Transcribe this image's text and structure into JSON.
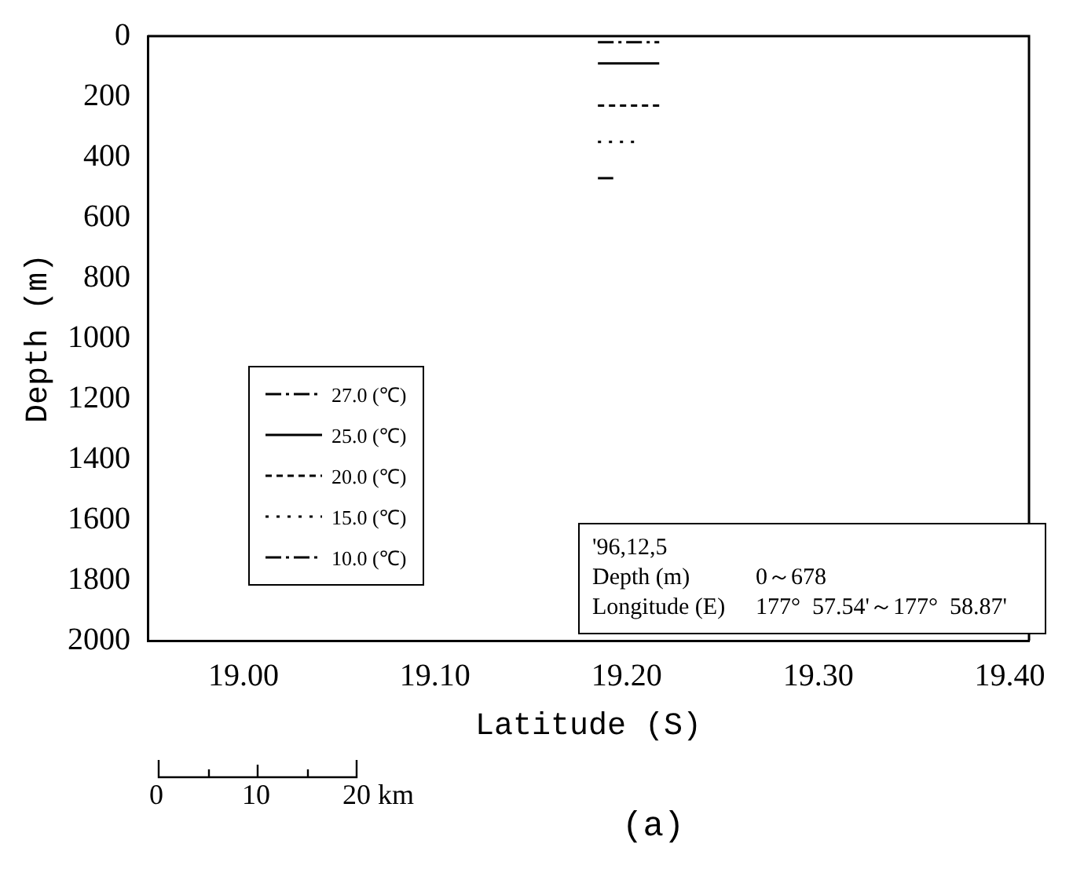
{
  "chart_data": {
    "type": "line",
    "xlabel": "Latitude (S)",
    "ylabel": "Depth (m)",
    "xlim": [
      18.95,
      19.41
    ],
    "ylim": [
      2000,
      0
    ],
    "xticks": [
      {
        "value": 19.0,
        "label": "19.00"
      },
      {
        "value": 19.1,
        "label": "19.10"
      },
      {
        "value": 19.2,
        "label": "19.20"
      },
      {
        "value": 19.3,
        "label": "19.30"
      },
      {
        "value": 19.4,
        "label": "19.40"
      }
    ],
    "yticks": [
      0,
      200,
      400,
      600,
      800,
      1000,
      1200,
      1400,
      1600,
      1800,
      2000
    ],
    "grid": false,
    "legend": "left",
    "marker": "none",
    "series": [
      {
        "name": "27.0 (℃)",
        "color": "#000000",
        "line_style": "dashdot",
        "x": [
          19.185,
          19.217
        ],
        "values": [
          20,
          20
        ]
      },
      {
        "name": "25.0 (℃)",
        "color": "#000000",
        "line_style": "solid",
        "x": [
          19.185,
          19.217
        ],
        "values": [
          90,
          90
        ]
      },
      {
        "name": "20.0 (℃)",
        "color": "#000000",
        "line_style": "dashed",
        "x": [
          19.185,
          19.217
        ],
        "values": [
          230,
          230
        ]
      },
      {
        "name": "15.0 (℃)",
        "color": "#000000",
        "line_style": "dotted",
        "x": [
          19.185,
          19.205
        ],
        "values": [
          350,
          350
        ]
      },
      {
        "name": "10.0 (℃)",
        "color": "#000000",
        "line_style": "dashdot",
        "x": [
          19.185,
          19.193
        ],
        "values": [
          470,
          470
        ]
      }
    ],
    "annotations": [
      "'96,12,5",
      "Depth (m)",
      "0～678",
      "Longitude (E)",
      "177°  57.54'～177°  58.87'",
      "0",
      "10",
      "20 km",
      "(a)"
    ]
  }
}
